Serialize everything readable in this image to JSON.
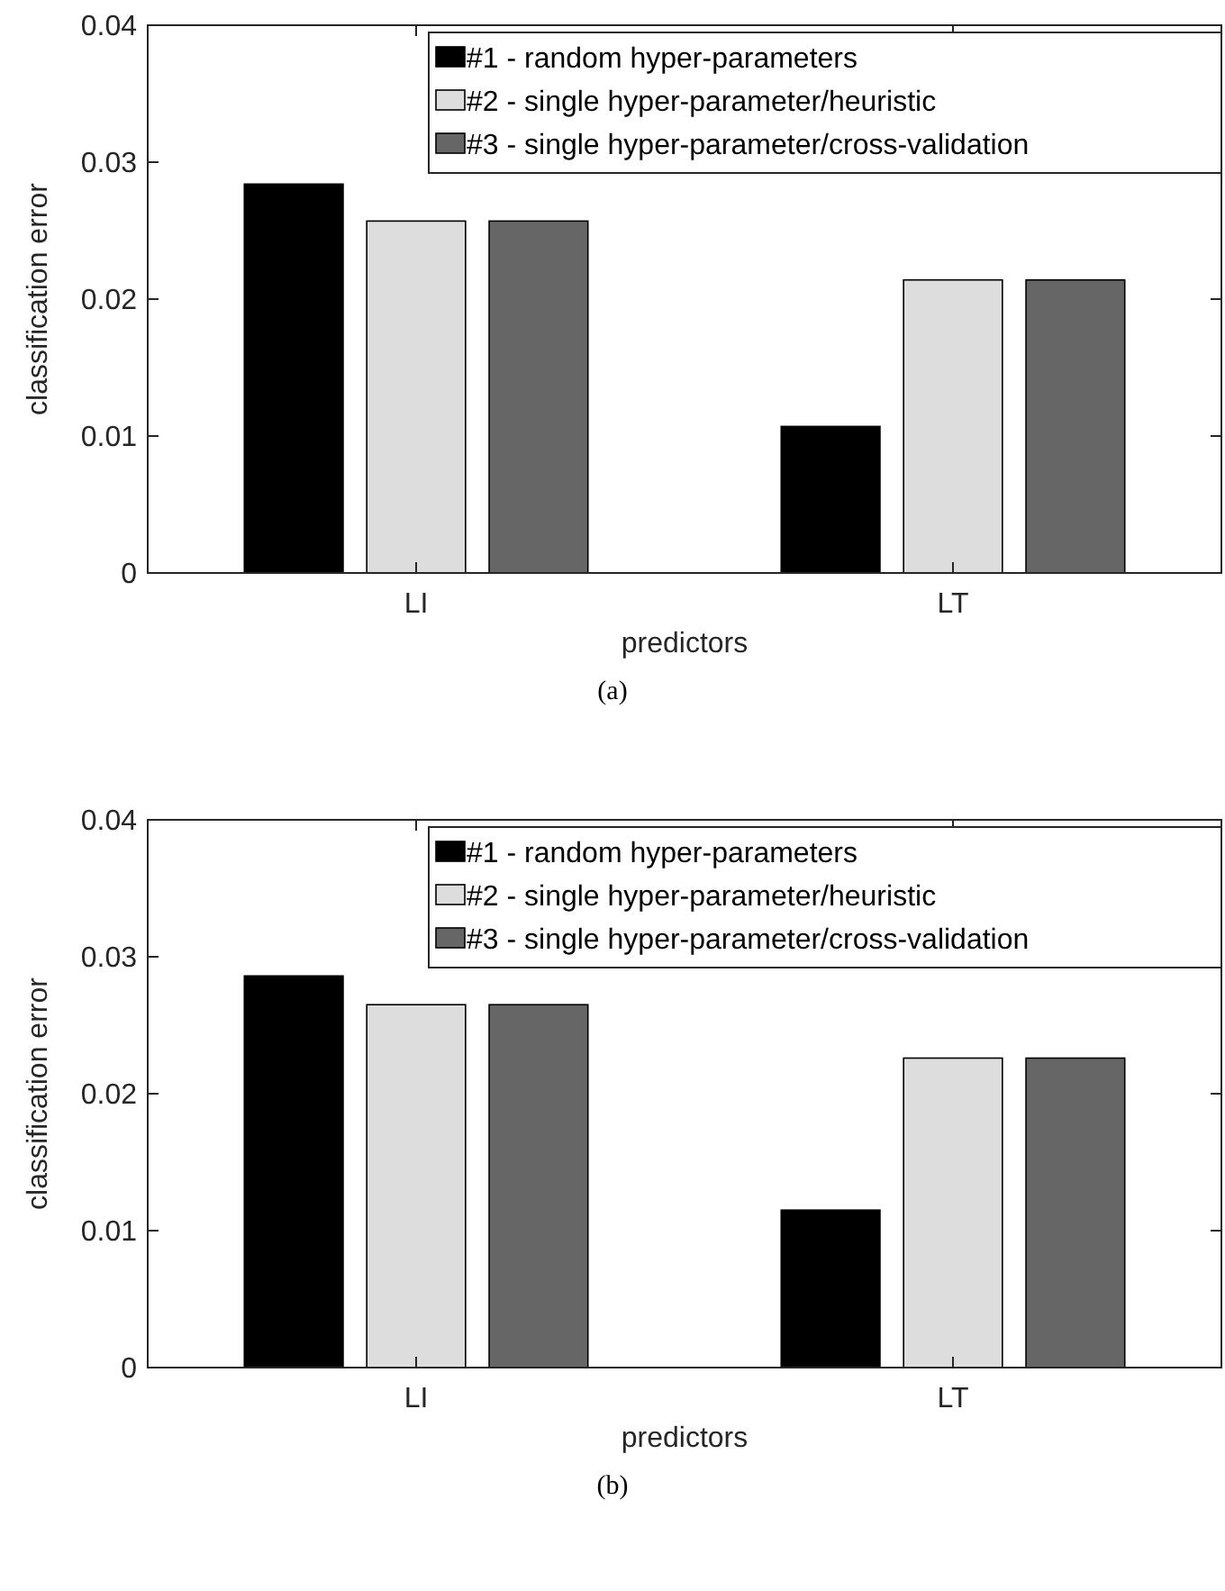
{
  "chart_data": [
    {
      "type": "bar",
      "categories": [
        "LI",
        "LT"
      ],
      "xlabel": "predictors",
      "ylabel": "classification error",
      "ylim": [
        0,
        0.04
      ],
      "yticks": [
        0,
        0.01,
        0.02,
        0.03,
        0.04
      ],
      "legend": "top right",
      "grid": false,
      "annotations": [
        "(a)"
      ],
      "series": [
        {
          "name": "#1 - random hyper-parameters",
          "color": "#000000",
          "values": [
            0.0284,
            0.0107
          ]
        },
        {
          "name": "#2 - single hyper-parameter/heuristic",
          "color": "#dddddd",
          "values": [
            0.0257,
            0.0214
          ]
        },
        {
          "name": "#3 - single hyper-parameter/cross-validation",
          "color": "#666666",
          "values": [
            0.0257,
            0.0214
          ]
        }
      ]
    },
    {
      "type": "bar",
      "categories": [
        "LI",
        "LT"
      ],
      "xlabel": "predictors",
      "ylabel": "classification error",
      "ylim": [
        0,
        0.04
      ],
      "yticks": [
        0,
        0.01,
        0.02,
        0.03,
        0.04
      ],
      "legend": "top right",
      "grid": false,
      "annotations": [
        "(b)"
      ],
      "series": [
        {
          "name": "#1 - random hyper-parameters",
          "color": "#000000",
          "values": [
            0.0286,
            0.0115
          ]
        },
        {
          "name": "#2 - single hyper-parameter/heuristic",
          "color": "#dddddd",
          "values": [
            0.0265,
            0.0226
          ]
        },
        {
          "name": "#3 - single hyper-parameter/cross-validation",
          "color": "#666666",
          "values": [
            0.0265,
            0.0226
          ]
        }
      ]
    }
  ]
}
